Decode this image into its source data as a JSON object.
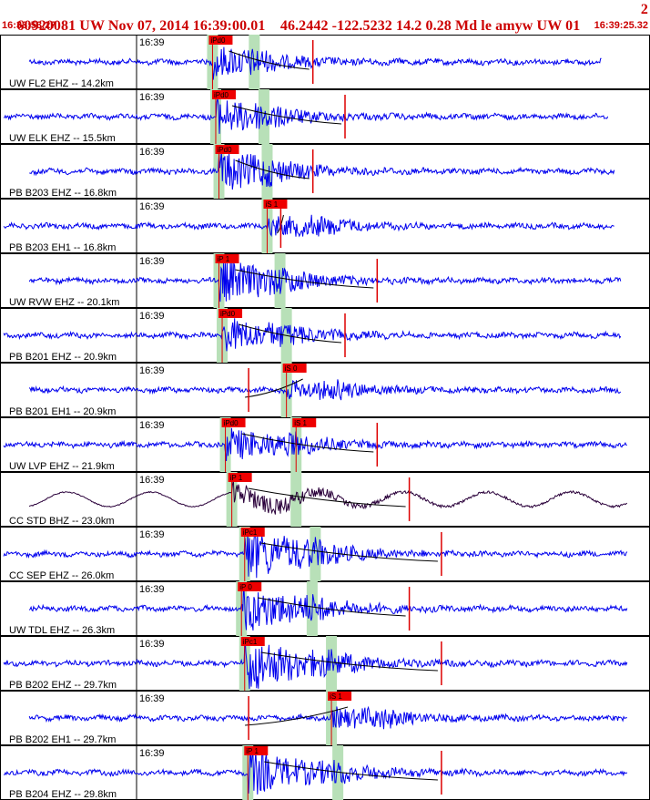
{
  "header": {
    "title": "60920081 UW Nov 07, 2014 16:39:00.01    46.2442 -122.5232 14.2 0.28 Md le amyw UW 01",
    "title_right": "2",
    "start_time": "16:38:53.27",
    "end_time": "16:39:25.32"
  },
  "colors": {
    "header_text": "#cc0000",
    "trace": "#0000ee",
    "trace_dark": "#2a003a",
    "pick_band": "#b8e0b8",
    "pick_label_bg": "#ee0000",
    "panel_border": "#000000"
  },
  "traces": [
    {
      "time_label": "16:39",
      "station": "UW FL2 EHZ -- 14.2km",
      "picks": [
        {
          "label": "iPd0",
          "t": 0.325
        }
      ],
      "s_band": 0.39,
      "amp": 0.25,
      "coda": 0.45,
      "tail_end": 0.93,
      "dark": false
    },
    {
      "time_label": "16:39",
      "station": "UW ELK EHZ -- 15.5km",
      "picks": [
        {
          "label": "iPd0",
          "t": 0.33
        }
      ],
      "s_band": 0.405,
      "amp": 0.3,
      "coda": 0.5,
      "tail_end": 0.94,
      "dark": false
    },
    {
      "time_label": "16:39",
      "station": "PB B203 EHZ -- 16.8km",
      "picks": [
        {
          "label": "iPd0",
          "t": 0.335
        }
      ],
      "s_band": 0.41,
      "amp": 0.35,
      "coda": 0.45,
      "tail_end": 0.95,
      "dark": false
    },
    {
      "time_label": "16:39",
      "station": "PB B203 EH1 -- 16.8km",
      "picks": [
        {
          "label": "iS 1",
          "t": 0.41
        }
      ],
      "s_band": null,
      "amp": 0.15,
      "coda": 0.4,
      "tail_end": 0.95,
      "dark": false
    },
    {
      "time_label": "16:39",
      "station": "UW RVW EHZ -- 20.1km",
      "picks": [
        {
          "label": "iP 1",
          "t": 0.335
        }
      ],
      "s_band": 0.43,
      "amp": 0.4,
      "coda": 0.55,
      "tail_end": 0.96,
      "dark": false
    },
    {
      "time_label": "16:39",
      "station": "PB B201 EHZ -- 20.9km",
      "picks": [
        {
          "label": "iPd0",
          "t": 0.34
        }
      ],
      "s_band": 0.44,
      "amp": 0.3,
      "coda": 0.5,
      "tail_end": 0.96,
      "dark": false
    },
    {
      "time_label": "16:39",
      "station": "PB B201 EH1 -- 20.9km",
      "picks": [
        {
          "label": "iS 0",
          "t": 0.44
        }
      ],
      "s_band": null,
      "amp": 0.12,
      "coda": 0.35,
      "tail_end": 0.96,
      "dark": false
    },
    {
      "time_label": "16:39",
      "station": "UW LVP EHZ -- 21.9km",
      "picks": [
        {
          "label": "iPd0",
          "t": 0.345
        },
        {
          "label": "iS 1",
          "t": 0.455
        }
      ],
      "s_band": 0.455,
      "amp": 0.3,
      "coda": 0.55,
      "tail_end": 0.97,
      "dark": false
    },
    {
      "time_label": "16:39",
      "station": "CC STD BHZ -- 23.0km",
      "picks": [
        {
          "label": "iP 1",
          "t": 0.355
        }
      ],
      "s_band": 0.455,
      "amp": 0.45,
      "coda": 0.6,
      "tail_end": 0.97,
      "dark": true
    },
    {
      "time_label": "16:39",
      "station": "CC SEP EHZ -- 26.0km",
      "picks": [
        {
          "label": "iPc1",
          "t": 0.375
        }
      ],
      "s_band": 0.485,
      "amp": 0.5,
      "coda": 0.65,
      "tail_end": 0.97,
      "dark": false
    },
    {
      "time_label": "16:39",
      "station": "UW TDL EHZ -- 26.3km",
      "picks": [
        {
          "label": "iP 0",
          "t": 0.37
        }
      ],
      "s_band": 0.48,
      "amp": 0.45,
      "coda": 0.6,
      "tail_end": 0.97,
      "dark": false
    },
    {
      "time_label": "16:39",
      "station": "PB B202 EHZ -- 29.7km",
      "picks": [
        {
          "label": "iPc1",
          "t": 0.375
        }
      ],
      "s_band": 0.51,
      "amp": 0.55,
      "coda": 0.65,
      "tail_end": 0.97,
      "dark": false
    },
    {
      "time_label": "16:39",
      "station": "PB B202 EH1 -- 29.7km",
      "picks": [
        {
          "label": "iS 1",
          "t": 0.51
        }
      ],
      "s_band": null,
      "amp": 0.15,
      "coda": 0.35,
      "tail_end": 0.97,
      "dark": false
    },
    {
      "time_label": "16:39",
      "station": "PB B204 EHZ -- 29.8km",
      "picks": [
        {
          "label": "iP 1",
          "t": 0.38
        }
      ],
      "s_band": 0.52,
      "amp": 0.45,
      "coda": 0.65,
      "tail_end": 0.97,
      "dark": false
    }
  ]
}
